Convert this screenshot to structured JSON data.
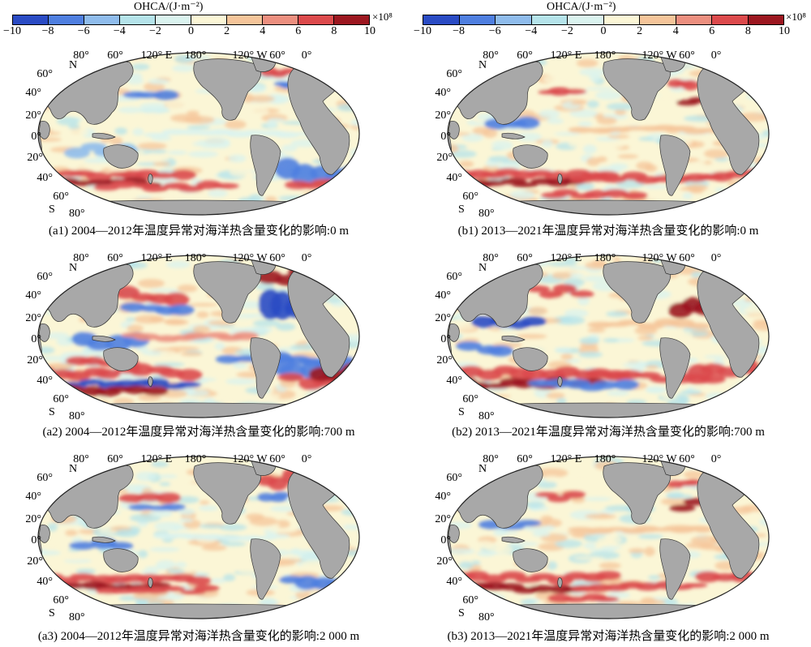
{
  "colorbar": {
    "title": "OHCA/(J·m⁻²)",
    "unit": "×10⁸",
    "ticks": [
      "−10",
      "−8",
      "−6",
      "−4",
      "−2",
      "0",
      "2",
      "4",
      "6",
      "8",
      "10"
    ],
    "colors": [
      "#2a4bc4",
      "#4f7fe0",
      "#8fbcec",
      "#b5e3ea",
      "#daf3ef",
      "#fbf6d6",
      "#f5c59a",
      "#ec8f7f",
      "#dc4a4c",
      "#9c1720"
    ]
  },
  "map_labels": {
    "top_lon": [
      "80°",
      "60°",
      "120° E",
      "180°",
      "120° W",
      "60°",
      "0°"
    ],
    "lat": [
      "60°",
      "40°",
      "20°",
      "0°",
      "20°",
      "40°",
      "60°"
    ],
    "north": "N",
    "south": "S",
    "south_pole_lat": "80°"
  },
  "panels": [
    {
      "id": "a1",
      "caption": "(a1) 2004—2012年温度异常对海洋热含量变化的影响:0 m"
    },
    {
      "id": "b1",
      "caption": "(b1) 2013—2021年温度异常对海洋热含量变化的影响:0 m"
    },
    {
      "id": "a2",
      "caption": "(a2) 2004—2012年温度异常对海洋热含量变化的影响:700 m"
    },
    {
      "id": "b2",
      "caption": "(b2) 2013—2021年温度异常对海洋热含量变化的影响:700 m"
    },
    {
      "id": "a3",
      "caption": "(a3) 2004—2012年温度异常对海洋热含量变化的影响:2 000 m"
    },
    {
      "id": "b3",
      "caption": "(b3) 2013—2021年温度异常对海洋热含量变化的影响:2 000 m"
    }
  ]
}
